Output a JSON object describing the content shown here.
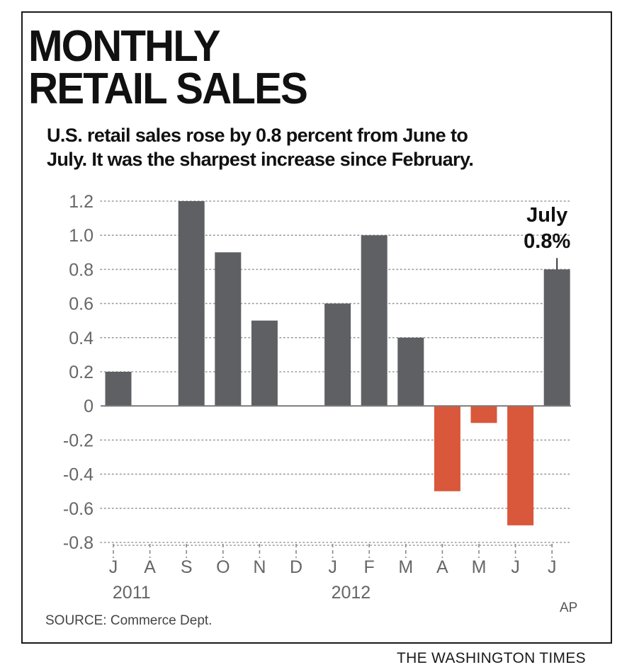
{
  "header": {
    "title_line1": "MONTHLY",
    "title_line2": "RETAIL SALES",
    "subtitle_line1": "U.S. retail sales rose by 0.8 percent from June to",
    "subtitle_line2": "July. It was the sharpest increase since February."
  },
  "chart_data": {
    "type": "bar",
    "categories": [
      "J",
      "A",
      "S",
      "O",
      "N",
      "D",
      "J",
      "F",
      "M",
      "A",
      "M",
      "J",
      "J"
    ],
    "values": [
      0.2,
      0,
      1.2,
      0.9,
      0.5,
      0,
      0.6,
      1.0,
      0.4,
      -0.5,
      -0.1,
      -0.7,
      0.8
    ],
    "year_labels": [
      {
        "label": "2011",
        "category_index": 0.5
      },
      {
        "label": "2012",
        "category_index": 6.5
      }
    ],
    "yticks": [
      "1.2",
      "1.0",
      "0.8",
      "0.6",
      "0.4",
      "0.2",
      "0",
      "-0.2",
      "-0.4",
      "-0.6",
      "-0.8"
    ],
    "ylim": [
      -0.8,
      1.2
    ],
    "grid": true,
    "colors": {
      "positive": "#5f6064",
      "negative": "#d9573a",
      "grid": "#9a9a9a"
    },
    "annotation": {
      "category_index": 12,
      "line1": "July",
      "line2": "0.8%"
    }
  },
  "footer": {
    "source": "SOURCE: Commerce Dept.",
    "credit": "AP",
    "publisher": "THE WASHINGTON TIMES"
  }
}
